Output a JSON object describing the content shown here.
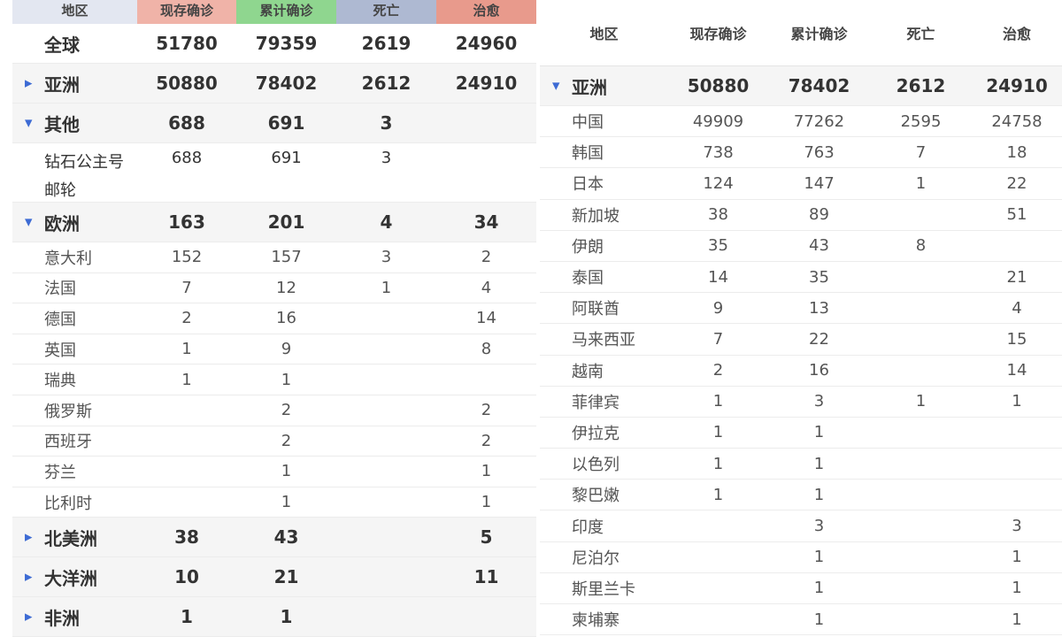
{
  "left": {
    "headers": [
      "地区",
      "现存确诊",
      "累计确诊",
      "死亡",
      "治愈"
    ],
    "header_colors": [
      "#e3e7f1",
      "#f0b3a8",
      "#8fd68f",
      "#aeb9d2",
      "#e89a8c"
    ],
    "rows": [
      {
        "type": "bold",
        "region": "全球",
        "values": [
          "51780",
          "79359",
          "2619",
          "24960"
        ]
      },
      {
        "type": "bold",
        "grey": true,
        "toggle": "collapsed",
        "region": "亚洲",
        "values": [
          "50880",
          "78402",
          "2612",
          "24910"
        ]
      },
      {
        "type": "bold",
        "grey": true,
        "toggle": "expanded",
        "region": "其他",
        "values": [
          "688",
          "691",
          "3",
          ""
        ]
      },
      {
        "type": "tall",
        "region": "钻石公主号邮轮",
        "values": [
          "688",
          "691",
          "3",
          ""
        ]
      },
      {
        "type": "bold",
        "grey": true,
        "toggle": "expanded",
        "region": "欧洲",
        "values": [
          "163",
          "201",
          "4",
          "34"
        ]
      },
      {
        "type": "sub",
        "region": "意大利",
        "values": [
          "152",
          "157",
          "3",
          "2"
        ]
      },
      {
        "type": "sub",
        "region": "法国",
        "values": [
          "7",
          "12",
          "1",
          "4"
        ]
      },
      {
        "type": "sub",
        "region": "德国",
        "values": [
          "2",
          "16",
          "",
          "14"
        ]
      },
      {
        "type": "sub",
        "region": "英国",
        "values": [
          "1",
          "9",
          "",
          "8"
        ]
      },
      {
        "type": "sub",
        "region": "瑞典",
        "values": [
          "1",
          "1",
          "",
          ""
        ]
      },
      {
        "type": "sub",
        "region": "俄罗斯",
        "values": [
          "",
          "2",
          "",
          "2"
        ]
      },
      {
        "type": "sub",
        "region": "西班牙",
        "values": [
          "",
          "2",
          "",
          "2"
        ]
      },
      {
        "type": "sub",
        "region": "芬兰",
        "values": [
          "",
          "1",
          "",
          "1"
        ]
      },
      {
        "type": "sub",
        "region": "比利时",
        "values": [
          "",
          "1",
          "",
          "1"
        ]
      },
      {
        "type": "bold",
        "grey": true,
        "toggle": "collapsed",
        "region": "北美洲",
        "values": [
          "38",
          "43",
          "",
          "5"
        ]
      },
      {
        "type": "bold",
        "grey": true,
        "toggle": "collapsed",
        "region": "大洋洲",
        "values": [
          "10",
          "21",
          "",
          "11"
        ]
      },
      {
        "type": "bold",
        "grey": true,
        "toggle": "collapsed",
        "region": "非洲",
        "values": [
          "1",
          "1",
          "",
          ""
        ]
      }
    ]
  },
  "right": {
    "headers": [
      "地区",
      "现存确诊",
      "累计确诊",
      "死亡",
      "治愈"
    ],
    "rows": [
      {
        "type": "bold",
        "grey": true,
        "toggle": "expanded",
        "region": "亚洲",
        "values": [
          "50880",
          "78402",
          "2612",
          "24910"
        ]
      },
      {
        "type": "sub",
        "region": "中国",
        "values": [
          "49909",
          "77262",
          "2595",
          "24758"
        ]
      },
      {
        "type": "sub",
        "region": "韩国",
        "values": [
          "738",
          "763",
          "7",
          "18"
        ]
      },
      {
        "type": "sub",
        "region": "日本",
        "values": [
          "124",
          "147",
          "1",
          "22"
        ]
      },
      {
        "type": "sub",
        "region": "新加坡",
        "values": [
          "38",
          "89",
          "",
          "51"
        ]
      },
      {
        "type": "sub",
        "region": "伊朗",
        "values": [
          "35",
          "43",
          "8",
          ""
        ]
      },
      {
        "type": "sub",
        "region": "泰国",
        "values": [
          "14",
          "35",
          "",
          "21"
        ]
      },
      {
        "type": "sub",
        "region": "阿联酋",
        "values": [
          "9",
          "13",
          "",
          "4"
        ]
      },
      {
        "type": "sub",
        "region": "马来西亚",
        "values": [
          "7",
          "22",
          "",
          "15"
        ]
      },
      {
        "type": "sub",
        "region": "越南",
        "values": [
          "2",
          "16",
          "",
          "14"
        ]
      },
      {
        "type": "sub",
        "region": "菲律宾",
        "values": [
          "1",
          "3",
          "1",
          "1"
        ]
      },
      {
        "type": "sub",
        "region": "伊拉克",
        "values": [
          "1",
          "1",
          "",
          ""
        ]
      },
      {
        "type": "sub",
        "region": "以色列",
        "values": [
          "1",
          "1",
          "",
          ""
        ]
      },
      {
        "type": "sub",
        "region": "黎巴嫩",
        "values": [
          "1",
          "1",
          "",
          ""
        ]
      },
      {
        "type": "sub",
        "region": "印度",
        "values": [
          "",
          "3",
          "",
          "3"
        ]
      },
      {
        "type": "sub",
        "region": "尼泊尔",
        "values": [
          "",
          "1",
          "",
          "1"
        ]
      },
      {
        "type": "sub",
        "region": "斯里兰卡",
        "values": [
          "",
          "1",
          "",
          "1"
        ]
      },
      {
        "type": "sub",
        "region": "柬埔寨",
        "values": [
          "",
          "1",
          "",
          "1"
        ]
      }
    ]
  }
}
